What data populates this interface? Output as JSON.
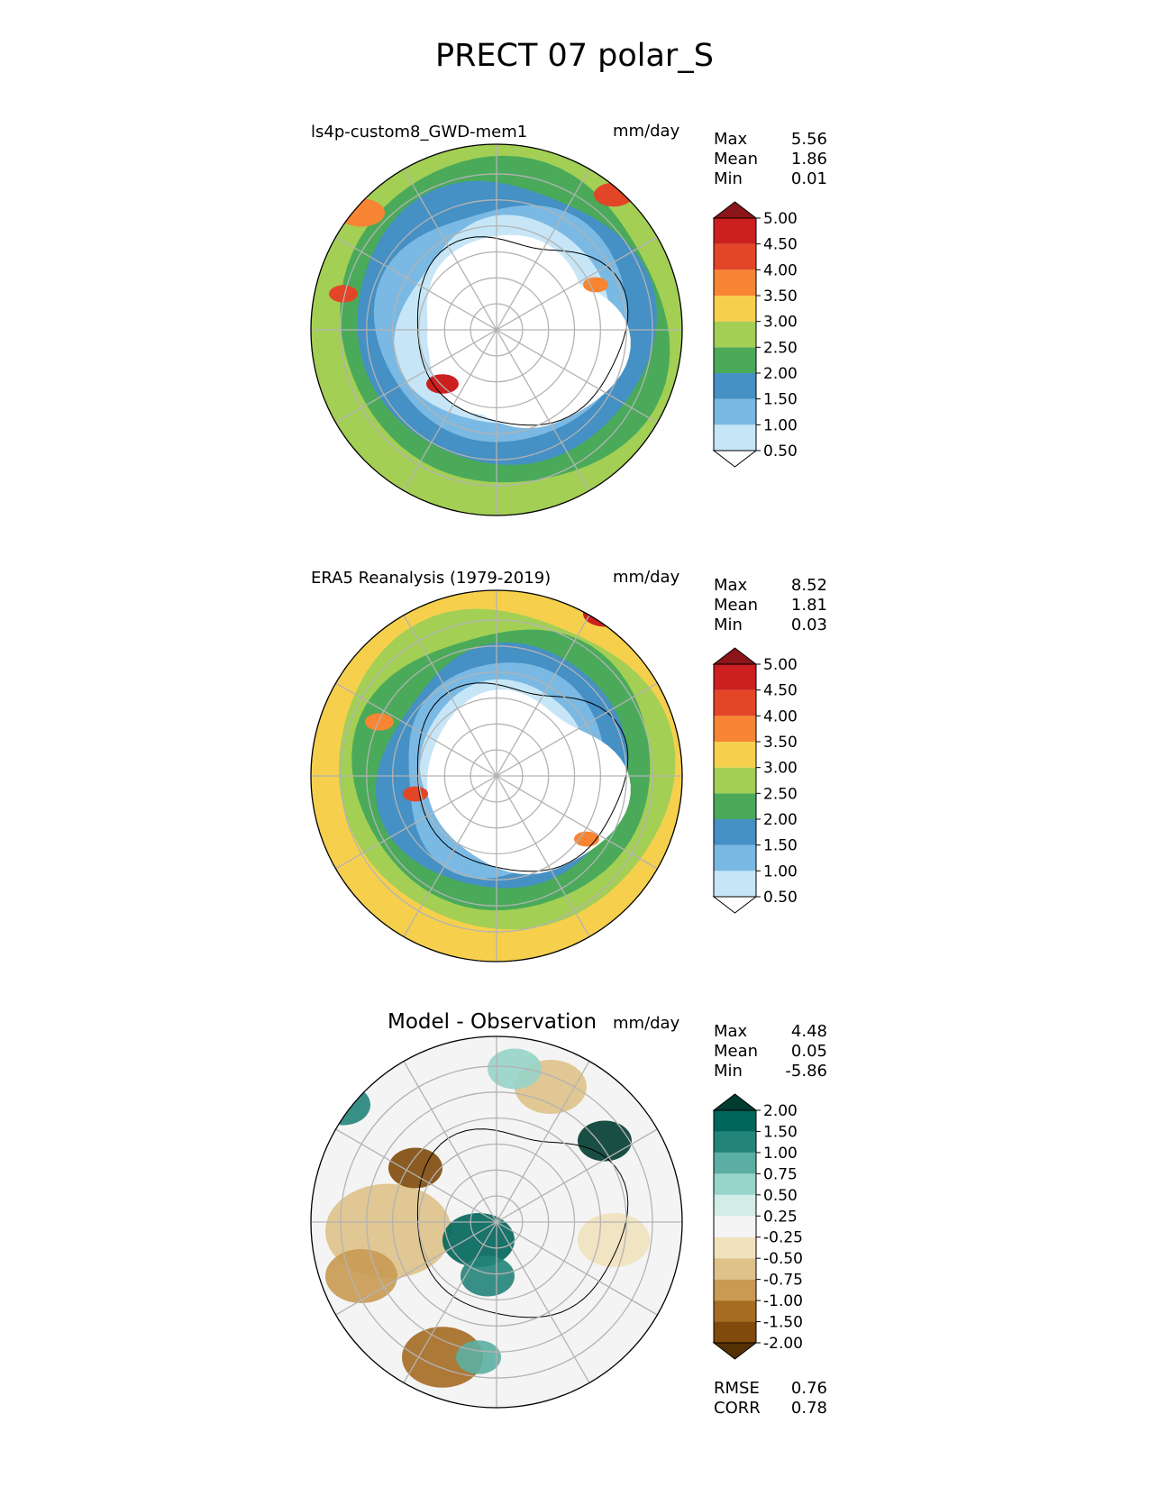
{
  "title": "PRECT 07 polar_S",
  "panels": [
    {
      "title": "ls4p-custom8_GWD-mem1",
      "units": "mm/day",
      "stats": [
        {
          "label": "Max",
          "value": "5.56"
        },
        {
          "label": "Mean",
          "value": "1.86"
        },
        {
          "label": "Min",
          "value": "0.01"
        }
      ]
    },
    {
      "title": "ERA5 Reanalysis (1979-2019)",
      "units": "mm/day",
      "stats": [
        {
          "label": "Max",
          "value": "8.52"
        },
        {
          "label": "Mean",
          "value": "1.81"
        },
        {
          "label": "Min",
          "value": "0.03"
        }
      ]
    },
    {
      "title": "Model - Observation",
      "units": "mm/day",
      "stats": [
        {
          "label": "Max",
          "value": "4.48"
        },
        {
          "label": "Mean",
          "value": "0.05"
        },
        {
          "label": "Min",
          "value": "-5.86"
        }
      ],
      "metrics": [
        {
          "label": "RMSE",
          "value": "0.76"
        },
        {
          "label": "CORR",
          "value": "0.78"
        }
      ]
    }
  ],
  "chart_data": [
    {
      "type": "heatmap",
      "projection": "south-polar-stereographic",
      "title": "ls4p-custom8_GWD-mem1",
      "units": "mm/day",
      "colorbar": {
        "levels": [
          "0.50",
          "1.00",
          "1.50",
          "2.00",
          "2.50",
          "3.00",
          "3.50",
          "4.00",
          "4.50",
          "5.00"
        ],
        "colors": [
          "#ffffff",
          "#c6e6f7",
          "#7ab9e3",
          "#4590c4",
          "#4aaa5a",
          "#a3cf55",
          "#f6d04d",
          "#f88533",
          "#e34527",
          "#cc1f1f",
          "#8b1519"
        ],
        "extend": "both"
      }
    },
    {
      "type": "heatmap",
      "projection": "south-polar-stereographic",
      "title": "ERA5 Reanalysis (1979-2019)",
      "units": "mm/day",
      "colorbar": {
        "levels": [
          "0.50",
          "1.00",
          "1.50",
          "2.00",
          "2.50",
          "3.00",
          "3.50",
          "4.00",
          "4.50",
          "5.00"
        ],
        "colors": [
          "#ffffff",
          "#c6e6f7",
          "#7ab9e3",
          "#4590c4",
          "#4aaa5a",
          "#a3cf55",
          "#f6d04d",
          "#f88533",
          "#e34527",
          "#cc1f1f",
          "#8b1519"
        ],
        "extend": "both"
      }
    },
    {
      "type": "heatmap",
      "projection": "south-polar-stereographic",
      "title": "Model - Observation",
      "units": "mm/day",
      "colorbar": {
        "levels": [
          "-2.00",
          "-1.50",
          "-1.00",
          "-0.75",
          "-0.50",
          "-0.25",
          "0.25",
          "0.50",
          "0.75",
          "1.00",
          "1.50",
          "2.00"
        ],
        "colors": [
          "#543005",
          "#7f4a0b",
          "#a56c22",
          "#c99a52",
          "#dfc28a",
          "#f1e2bd",
          "#f4f4f4",
          "#d2ece7",
          "#97d4c9",
          "#5bafa2",
          "#23847a",
          "#00655a",
          "#003c30"
        ],
        "extend": "both"
      }
    }
  ]
}
